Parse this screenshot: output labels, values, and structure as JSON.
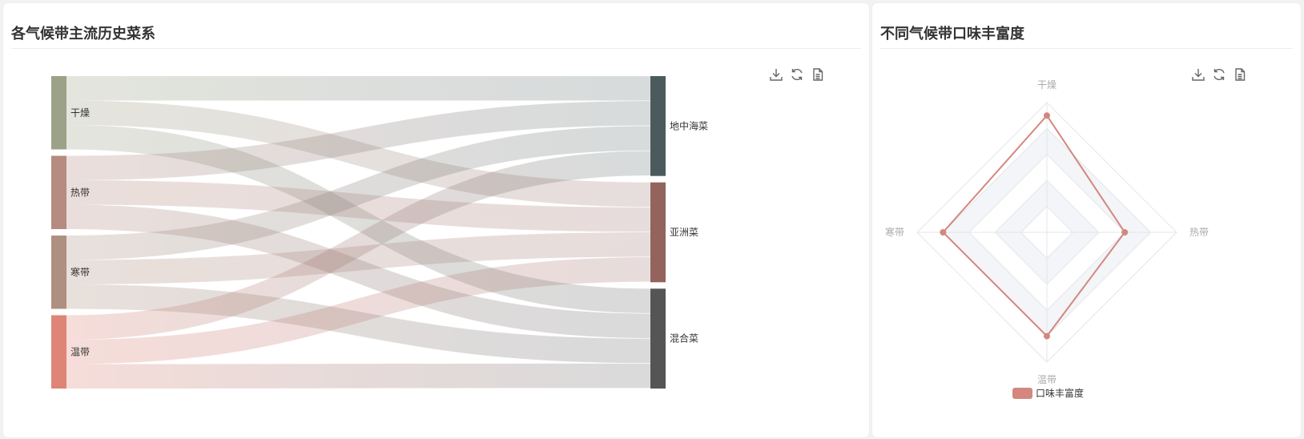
{
  "left_panel": {
    "title": "各气候带主流历史菜系"
  },
  "right_panel": {
    "title": "不同气候带口味丰富度"
  },
  "toolbox": {
    "icons": [
      "download-icon",
      "refresh-icon",
      "data-view-icon"
    ]
  },
  "chart_data": [
    {
      "type": "sankey",
      "sources": [
        {
          "name": "干燥",
          "color": "#9ca287"
        },
        {
          "name": "热带",
          "color": "#b68b80"
        },
        {
          "name": "寒带",
          "color": "#ae9080"
        },
        {
          "name": "温带",
          "color": "#de8577"
        }
      ],
      "targets": [
        {
          "name": "地中海菜",
          "color": "#4b5a5d"
        },
        {
          "name": "亚洲菜",
          "color": "#93635e"
        },
        {
          "name": "混合菜",
          "color": "#555556"
        }
      ],
      "links": [
        {
          "source": "干燥",
          "target": "地中海菜",
          "value": 1
        },
        {
          "source": "干燥",
          "target": "亚洲菜",
          "value": 1
        },
        {
          "source": "干燥",
          "target": "混合菜",
          "value": 1
        },
        {
          "source": "热带",
          "target": "地中海菜",
          "value": 1
        },
        {
          "source": "热带",
          "target": "亚洲菜",
          "value": 1
        },
        {
          "source": "热带",
          "target": "混合菜",
          "value": 1
        },
        {
          "source": "寒带",
          "target": "地中海菜",
          "value": 1
        },
        {
          "source": "寒带",
          "target": "亚洲菜",
          "value": 1
        },
        {
          "source": "寒带",
          "target": "混合菜",
          "value": 1
        },
        {
          "source": "温带",
          "target": "地中海菜",
          "value": 1
        },
        {
          "source": "温带",
          "target": "亚洲菜",
          "value": 1
        },
        {
          "source": "温带",
          "target": "混合菜",
          "value": 1
        }
      ]
    },
    {
      "type": "radar",
      "indicators": [
        {
          "name": "干燥",
          "max": 5
        },
        {
          "name": "热带",
          "max": 5
        },
        {
          "name": "温带",
          "max": 5
        },
        {
          "name": "寒带",
          "max": 5
        }
      ],
      "series": [
        {
          "name": "口味丰富度",
          "values": [
            4.5,
            3.0,
            4.0,
            4.0
          ],
          "color": "#d4877e"
        }
      ],
      "split_number": 5,
      "legend_position": "bottom"
    }
  ]
}
